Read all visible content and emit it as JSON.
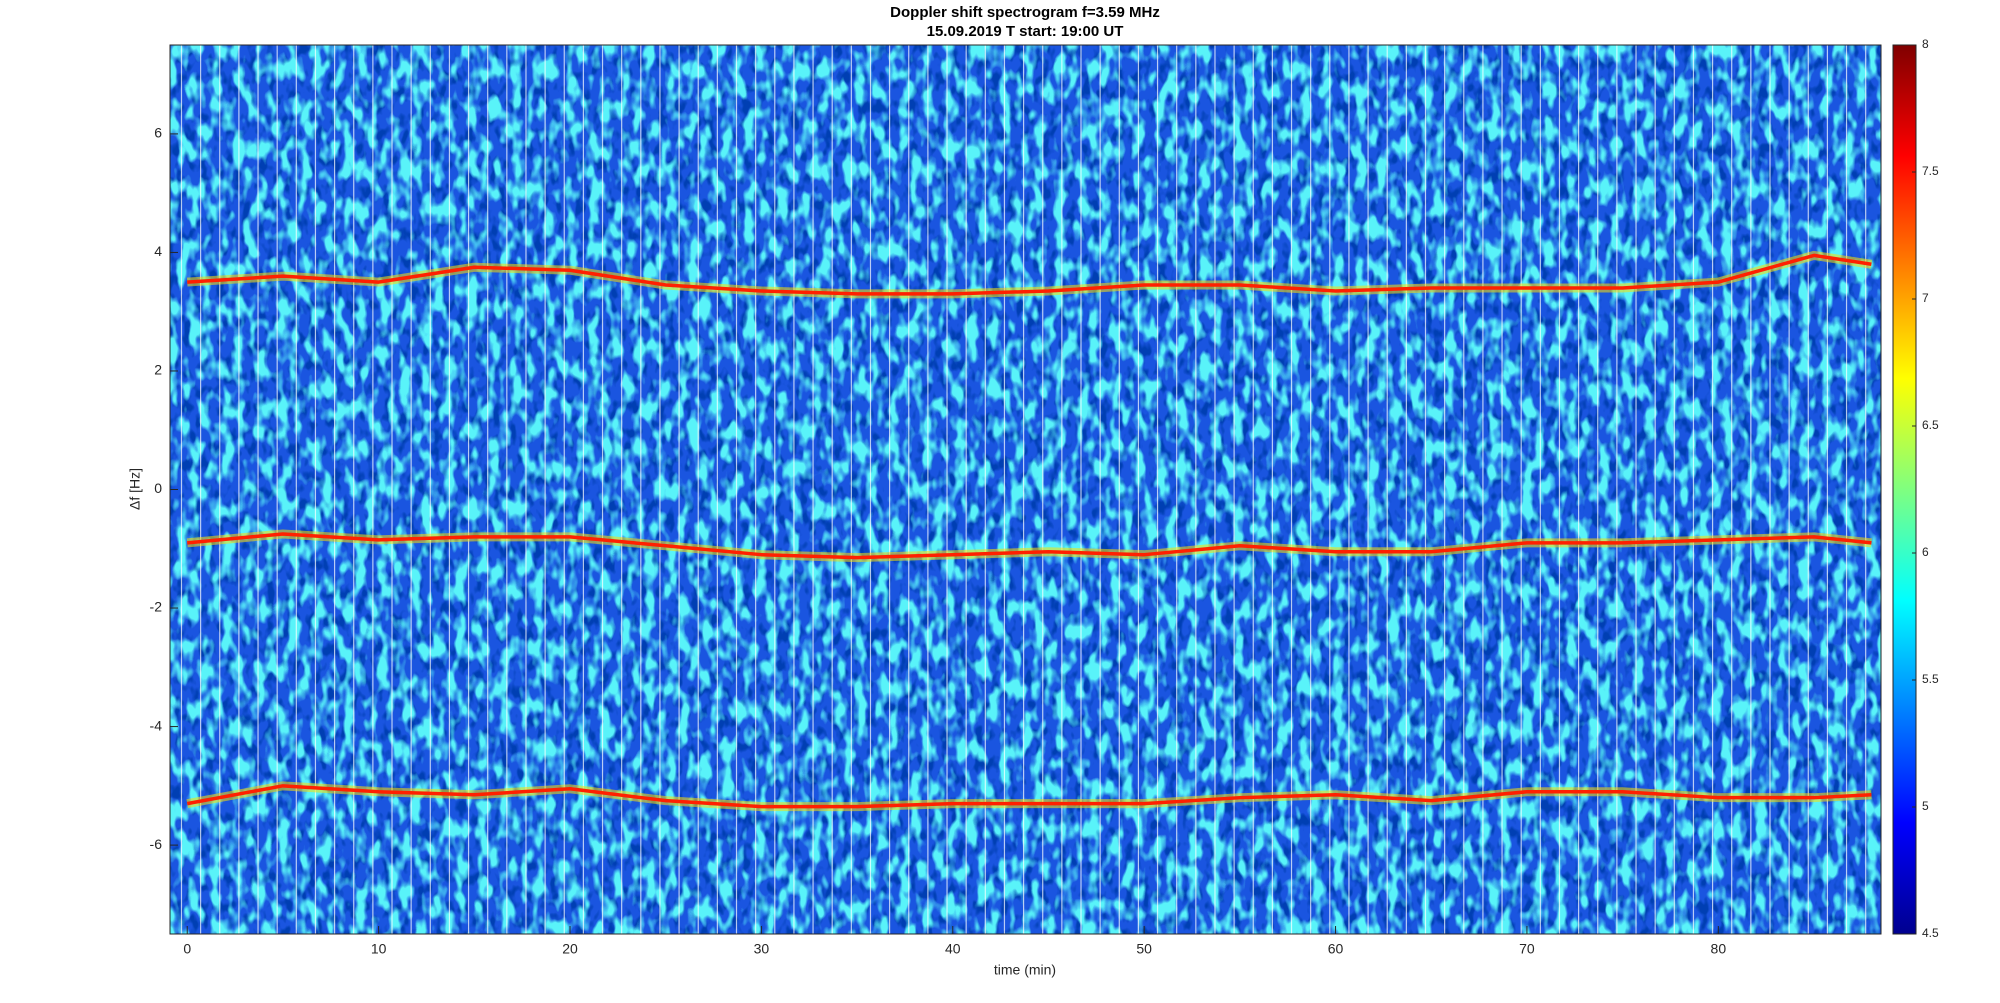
{
  "chart_data": {
    "type": "spectrogram",
    "title": "Doppler shift spectrogram f=3.59 MHz",
    "subtitle": "15.09.2019   T start: 19:00 UT",
    "x_label": "time (min)",
    "y_label": "Δf [Hz]",
    "x": [
      0,
      5,
      10,
      15,
      20,
      25,
      30,
      35,
      40,
      45,
      50,
      55,
      60,
      65,
      70,
      75,
      80,
      85,
      88
    ],
    "series": [
      {
        "color": "#ff2000",
        "values": [
          3.5,
          3.6,
          3.5,
          3.75,
          3.7,
          3.45,
          3.35,
          3.3,
          3.3,
          3.35,
          3.45,
          3.45,
          3.35,
          3.4,
          3.4,
          3.4,
          3.5,
          3.95,
          3.8
        ]
      },
      {
        "color": "#ff2000",
        "values": [
          -0.9,
          -0.75,
          -0.85,
          -0.8,
          -0.8,
          -0.95,
          -1.1,
          -1.15,
          -1.1,
          -1.05,
          -1.1,
          -0.95,
          -1.05,
          -1.05,
          -0.9,
          -0.9,
          -0.85,
          -0.8,
          -0.9
        ]
      },
      {
        "color": "#ff2000",
        "values": [
          -5.3,
          -5.0,
          -5.1,
          -5.15,
          -5.05,
          -5.25,
          -5.35,
          -5.35,
          -5.3,
          -5.3,
          -5.3,
          -5.2,
          -5.15,
          -5.25,
          -5.1,
          -5.1,
          -5.2,
          -5.2,
          -5.15
        ]
      }
    ],
    "xlim": [
      -0.9,
      88.5
    ],
    "xticks": [
      0,
      10,
      20,
      30,
      40,
      50,
      60,
      70,
      80
    ],
    "ylim": [
      -7.5,
      7.5
    ],
    "yticks": [
      -6,
      -4,
      -2,
      0,
      2,
      4,
      6
    ],
    "colormap": "jet",
    "clim": [
      4.5,
      8
    ],
    "cticks": [
      4.5,
      5,
      5.5,
      6,
      6.5,
      7,
      7.5,
      8
    ]
  }
}
